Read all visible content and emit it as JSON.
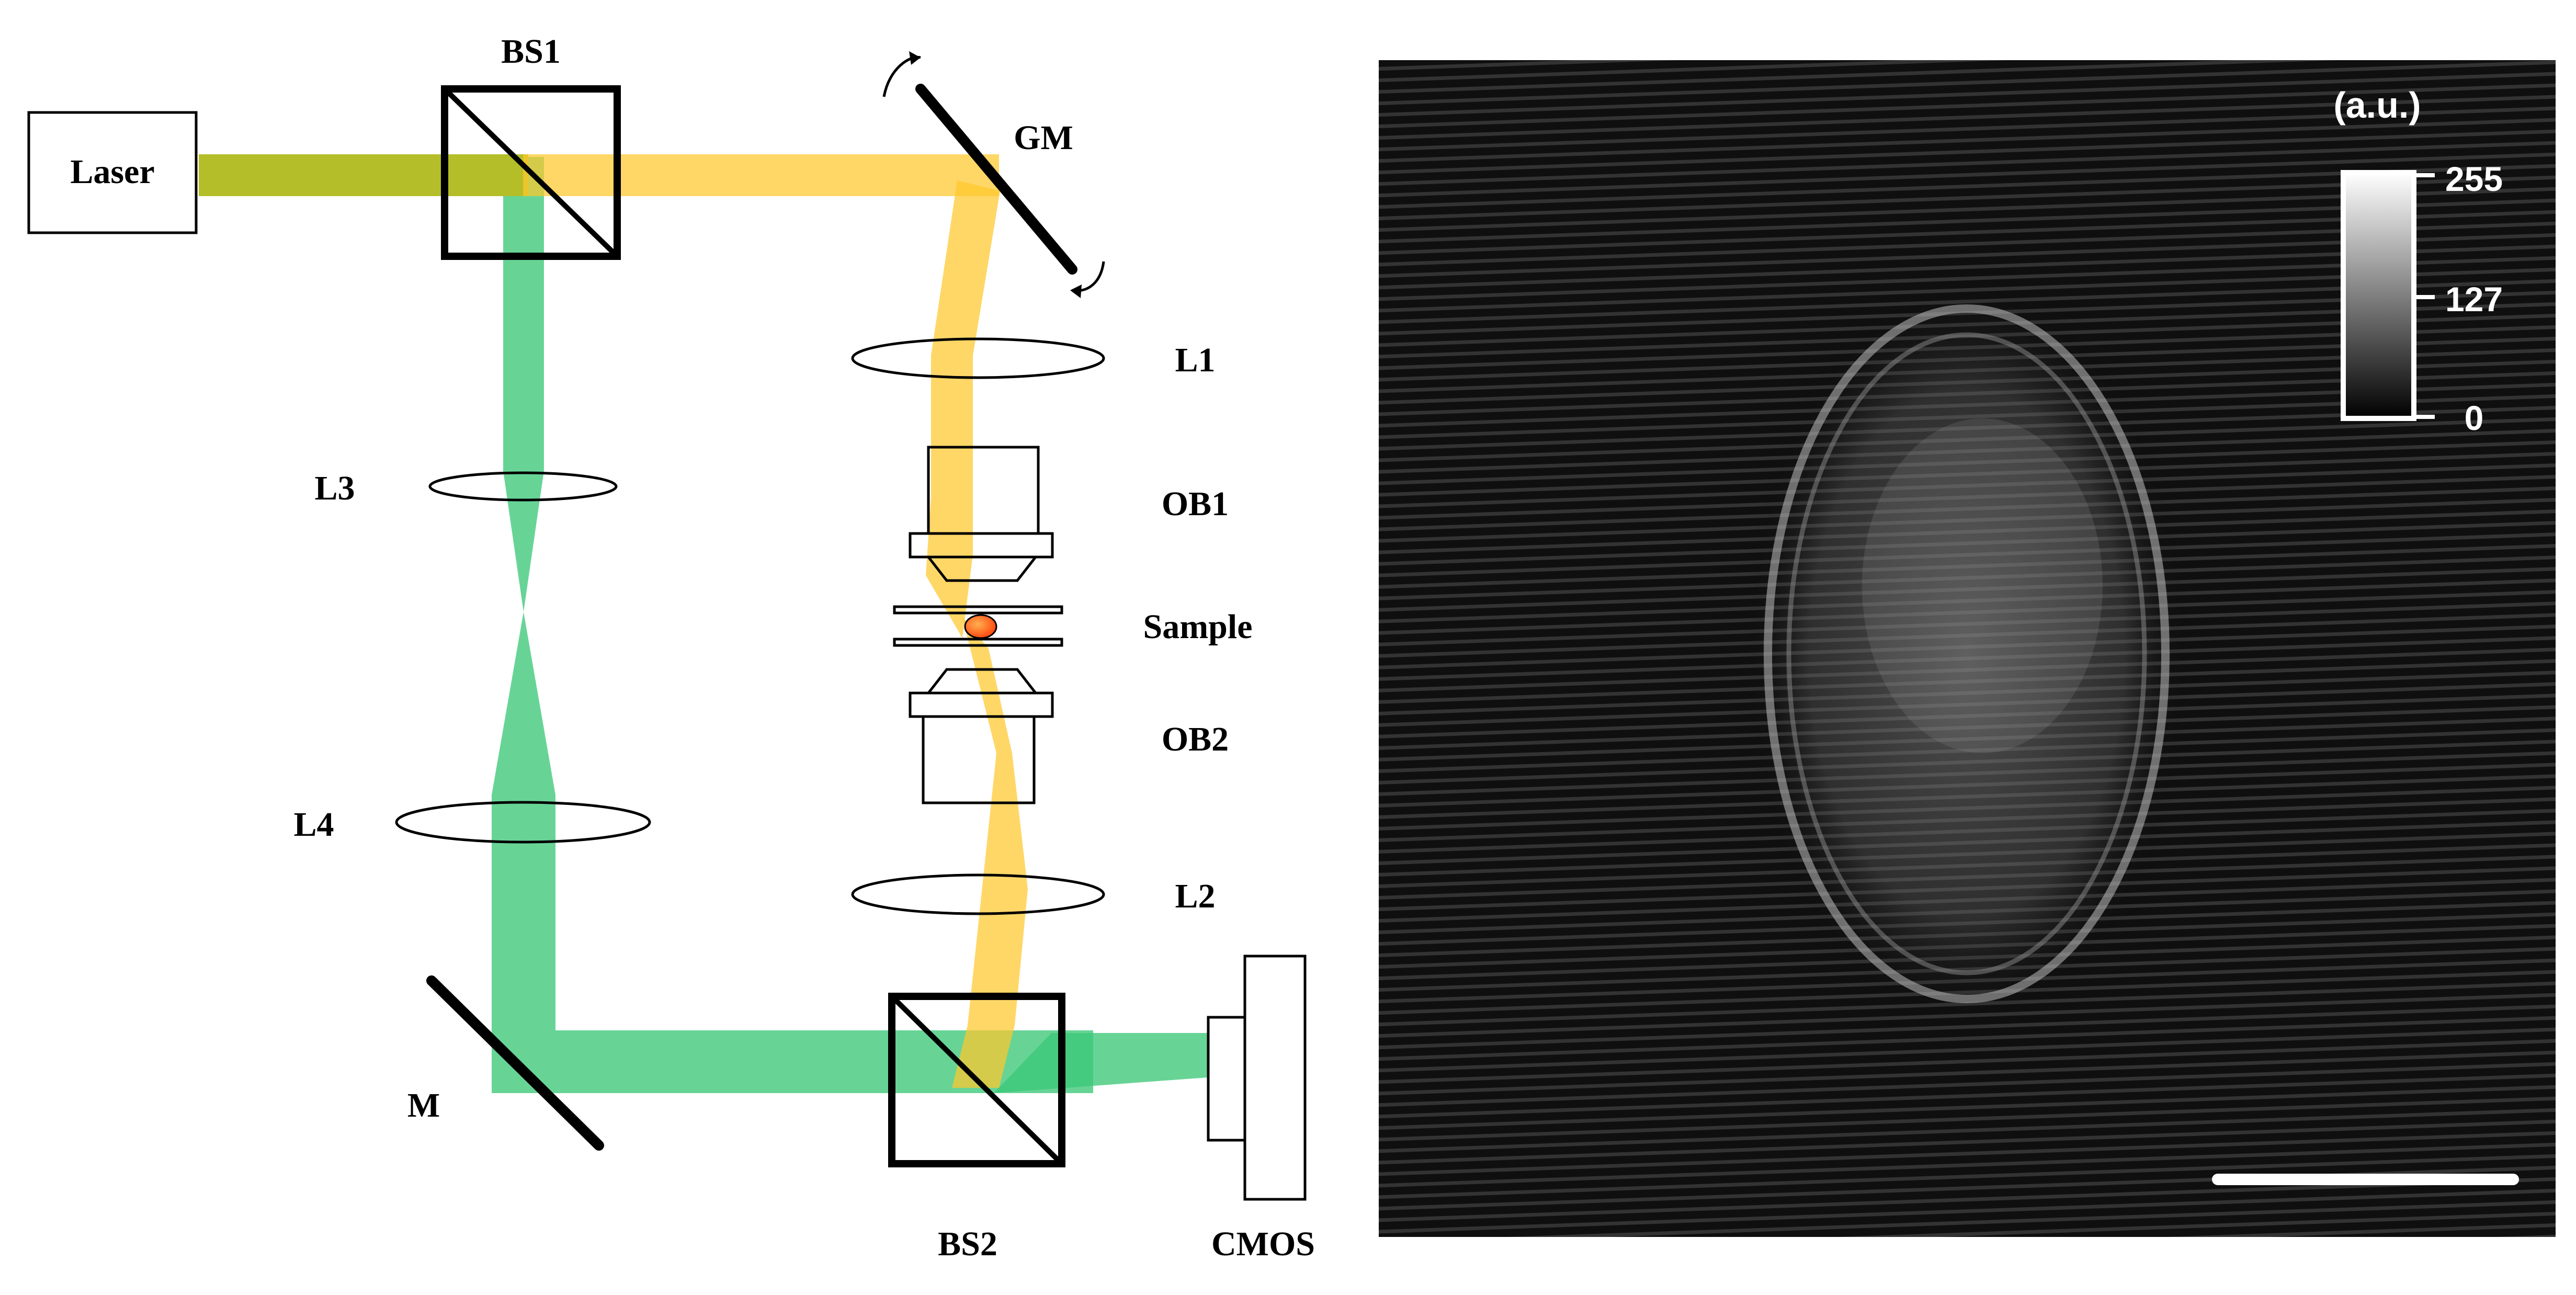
{
  "setup": {
    "labels": {
      "laser": "Laser",
      "bs1": "BS1",
      "gm": "GM",
      "l1": "L1",
      "ob1": "OB1",
      "sample": "Sample",
      "ob2": "OB2",
      "l2": "L2",
      "l3": "L3",
      "l4": "L4",
      "m": "M",
      "bs2": "BS2",
      "cmos": "CMOS"
    },
    "colors": {
      "reference_beam": "#3cc878",
      "object_beam": "#ffc72c",
      "combined_beam": "#b4be28",
      "sample": "#ff5a1e",
      "outline": "#000000"
    }
  },
  "hologram": {
    "colorbar": {
      "unit": "(a.u.)",
      "ticks": [
        "255",
        "127",
        "0"
      ],
      "range": [
        0,
        255
      ],
      "colormap": "grayscale"
    },
    "scale_bar_color": "#ffffff",
    "background_color": "#0a0a0a"
  }
}
